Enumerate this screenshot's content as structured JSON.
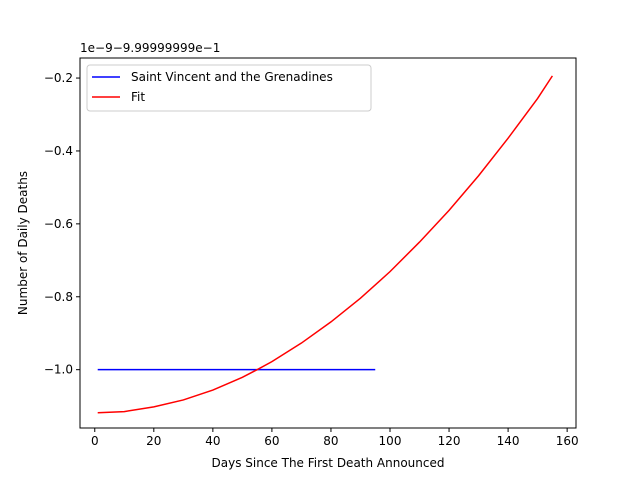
{
  "chart_data": {
    "type": "line",
    "title": "",
    "xlabel": "Days Since The First Death Announced",
    "ylabel": "Number of Daily Deaths",
    "offset_text": "1e−9−9.99999999e−1",
    "xlim": [
      -5,
      163
    ],
    "ylim": [
      -1.16,
      -0.145
    ],
    "xticks": [
      0,
      20,
      40,
      60,
      80,
      100,
      120,
      140,
      160
    ],
    "xtick_labels": [
      "0",
      "20",
      "40",
      "60",
      "80",
      "100",
      "120",
      "140",
      "160"
    ],
    "yticks": [
      -1.0,
      -0.8,
      -0.6,
      -0.4,
      -0.2
    ],
    "ytick_labels": [
      "−1.0",
      "−0.8",
      "−0.6",
      "−0.4",
      "−0.2"
    ],
    "grid": false,
    "legend_position": "top-left",
    "series": [
      {
        "name": "Saint Vincent and the Grenadines",
        "color": "#0000ff",
        "x": [
          1,
          95
        ],
        "y": [
          -1.0,
          -1.0
        ]
      },
      {
        "name": "Fit",
        "color": "#ff0000",
        "x": [
          1,
          10,
          20,
          30,
          40,
          50,
          55,
          60,
          70,
          80,
          90,
          100,
          110,
          120,
          130,
          140,
          150,
          155
        ],
        "y": [
          -1.118,
          -1.115,
          -1.102,
          -1.083,
          -1.056,
          -1.021,
          -1.0,
          -0.978,
          -0.927,
          -0.869,
          -0.804,
          -0.731,
          -0.65,
          -0.563,
          -0.468,
          -0.365,
          -0.256,
          -0.194
        ]
      }
    ]
  }
}
